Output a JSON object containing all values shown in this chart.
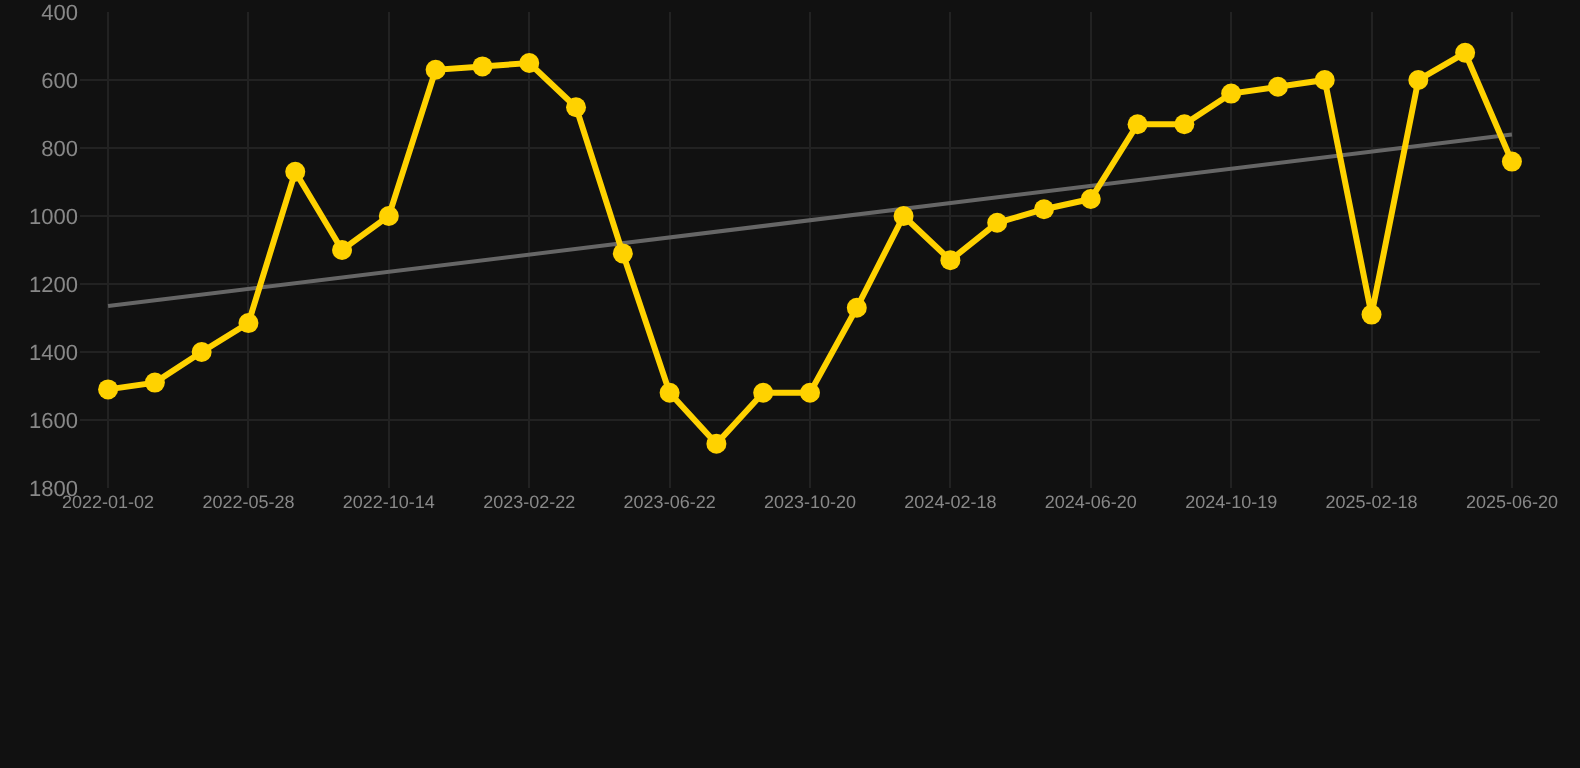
{
  "chart_data": {
    "type": "line",
    "categories": [
      "2022-01-02",
      null,
      null,
      "2022-05-28",
      null,
      null,
      "2022-10-14",
      null,
      null,
      "2023-02-22",
      null,
      null,
      "2023-06-22",
      null,
      null,
      "2023-10-20",
      null,
      null,
      "2024-02-18",
      null,
      null,
      "2024-06-20",
      null,
      null,
      "2024-10-19",
      null,
      null,
      "2025-02-18",
      null,
      null,
      "2025-06-20"
    ],
    "series": [
      {
        "color": "#ffd200",
        "marker": "circle",
        "values": [
          1510,
          1490,
          1400,
          1315,
          870,
          1100,
          1000,
          570,
          560,
          550,
          680,
          1110,
          1520,
          1670,
          1520,
          1520,
          1270,
          1000,
          1130,
          1020,
          980,
          950,
          730,
          730,
          640,
          620,
          600,
          1290,
          600,
          520,
          840
        ]
      },
      {
        "type": "line",
        "color": "#666666",
        "marker": "none",
        "values": [
          1265,
          null,
          null,
          null,
          null,
          null,
          null,
          null,
          null,
          null,
          null,
          null,
          null,
          null,
          null,
          null,
          null,
          null,
          null,
          null,
          null,
          null,
          null,
          null,
          null,
          null,
          null,
          null,
          null,
          null,
          760
        ]
      }
    ],
    "ylim": [
      1800,
      400
    ],
    "yticks": [
      400,
      600,
      800,
      1000,
      1200,
      1400,
      1600,
      1800
    ],
    "grid": true
  }
}
